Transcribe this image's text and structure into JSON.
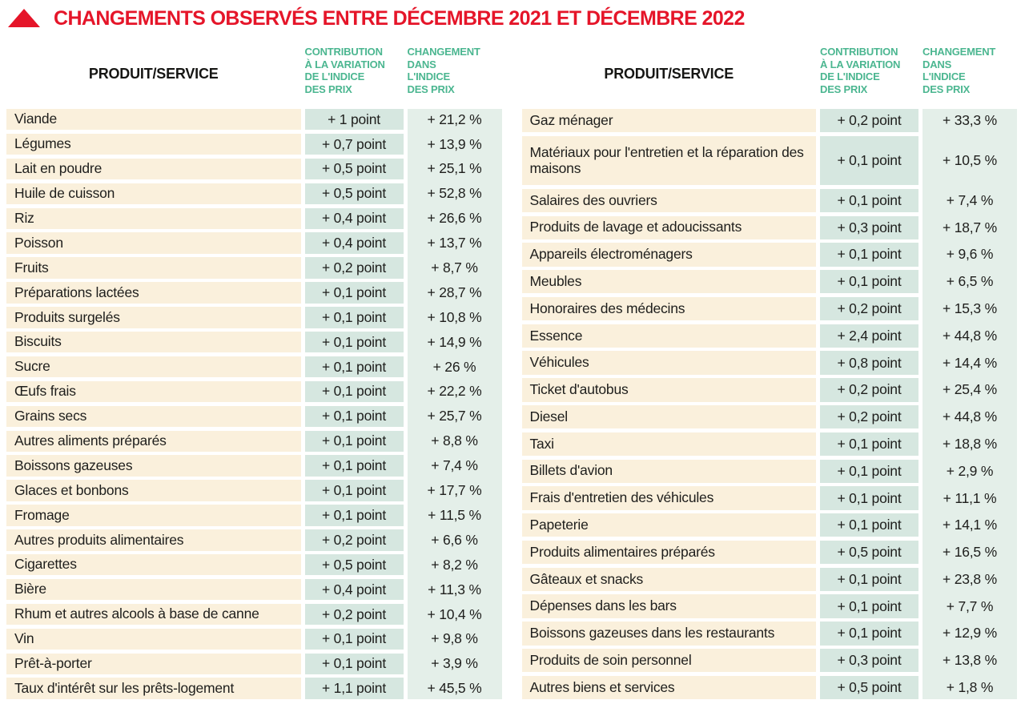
{
  "title": {
    "text": "CHANGEMENTS OBSERVÉS ENTRE DÉCEMBRE 2021 ET DÉCEMBRE 2022",
    "icon": "triangle-up-icon"
  },
  "colors": {
    "title_red": "#e51529",
    "header_green": "#4bb690",
    "product_cell_cream": "#faf0dc",
    "contribution_cell_teal": "#d6e7e0",
    "change_column_teal": "#e4efe9",
    "text": "#1e1e1c"
  },
  "column_headers": {
    "product": "PRODUIT/SERVICE",
    "contribution": "CONTRIBUTION\nÀ LA VARIATION\nDE L'INDICE\nDES PRIX",
    "change": "CHANGEMENT\nDANS\nL'INDICE\nDES PRIX"
  },
  "chart_data": [
    {
      "type": "table",
      "title": "Changements observés entre décembre 2021 et décembre 2022 (tableau gauche)",
      "columns": [
        "PRODUIT/SERVICE",
        "CONTRIBUTION À LA VARIATION DE L'INDICE DES PRIX",
        "CHANGEMENT DANS L'INDICE DES PRIX"
      ],
      "rows": [
        {
          "product": "Viande",
          "contribution": "+ 1 point",
          "change": "+ 21,2 %"
        },
        {
          "product": "Légumes",
          "contribution": "+ 0,7 point",
          "change": "+ 13,9 %"
        },
        {
          "product": "Lait en poudre",
          "contribution": "+ 0,5 point",
          "change": "+ 25,1 %"
        },
        {
          "product": "Huile de cuisson",
          "contribution": "+ 0,5 point",
          "change": "+ 52,8 %"
        },
        {
          "product": "Riz",
          "contribution": "+ 0,4 point",
          "change": "+ 26,6 %"
        },
        {
          "product": "Poisson",
          "contribution": "+ 0,4 point",
          "change": "+ 13,7 %"
        },
        {
          "product": "Fruits",
          "contribution": "+ 0,2 point",
          "change": "+ 8,7 %"
        },
        {
          "product": "Préparations lactées",
          "contribution": "+ 0,1 point",
          "change": "+ 28,7 %"
        },
        {
          "product": "Produits surgelés",
          "contribution": "+ 0,1 point",
          "change": "+ 10,8 %"
        },
        {
          "product": "Biscuits",
          "contribution": "+ 0,1 point",
          "change": "+ 14,9 %"
        },
        {
          "product": "Sucre",
          "contribution": "+ 0,1 point",
          "change": "+ 26 %"
        },
        {
          "product": "Œufs frais",
          "contribution": "+ 0,1 point",
          "change": "+ 22,2 %"
        },
        {
          "product": "Grains secs",
          "contribution": "+ 0,1 point",
          "change": "+ 25,7 %"
        },
        {
          "product": "Autres aliments préparés",
          "contribution": "+ 0,1 point",
          "change": "+ 8,8 %"
        },
        {
          "product": "Boissons gazeuses",
          "contribution": "+ 0,1 point",
          "change": "+ 7,4 %"
        },
        {
          "product": "Glaces et bonbons",
          "contribution": "+ 0,1 point",
          "change": "+ 17,7 %"
        },
        {
          "product": "Fromage",
          "contribution": "+ 0,1 point",
          "change": "+ 11,5 %"
        },
        {
          "product": "Autres produits alimentaires",
          "contribution": "+ 0,2 point",
          "change": "+ 6,6 %"
        },
        {
          "product": "Cigarettes",
          "contribution": "+ 0,5 point",
          "change": "+ 8,2 %"
        },
        {
          "product": "Bière",
          "contribution": "+ 0,4 point",
          "change": "+ 11,3 %"
        },
        {
          "product": "Rhum et autres alcools à base de canne",
          "contribution": "+ 0,2 point",
          "change": "+ 10,4 %"
        },
        {
          "product": "Vin",
          "contribution": "+ 0,1 point",
          "change": "+ 9,8 %"
        },
        {
          "product": "Prêt-à-porter",
          "contribution": "+ 0,1 point",
          "change": "+ 3,9 %"
        },
        {
          "product": "Taux d'intérêt sur les prêts-logement",
          "contribution": "+ 1,1 point",
          "change": "+ 45,5 %"
        }
      ]
    },
    {
      "type": "table",
      "title": "Changements observés entre décembre 2021 et décembre 2022 (tableau droit)",
      "columns": [
        "PRODUIT/SERVICE",
        "CONTRIBUTION À LA VARIATION DE L'INDICE DES PRIX",
        "CHANGEMENT DANS L'INDICE DES PRIX"
      ],
      "rows": [
        {
          "product": "Gaz ménager",
          "contribution": "+ 0,2 point",
          "change": "+ 33,3 %"
        },
        {
          "product": "Matériaux pour l'entretien et la réparation des maisons",
          "contribution": "+ 0,1 point",
          "change": "+ 10,5 %",
          "tall": true
        },
        {
          "product": "Salaires des ouvriers",
          "contribution": "+ 0,1 point",
          "change": "+ 7,4 %"
        },
        {
          "product": "Produits de lavage et adoucissants",
          "contribution": "+ 0,3 point",
          "change": "+ 18,7 %"
        },
        {
          "product": "Appareils électroménagers",
          "contribution": "+ 0,1 point",
          "change": "+ 9,6 %"
        },
        {
          "product": "Meubles",
          "contribution": "+ 0,1 point",
          "change": "+ 6,5 %"
        },
        {
          "product": "Honoraires des médecins",
          "contribution": "+ 0,2 point",
          "change": "+ 15,3 %"
        },
        {
          "product": "Essence",
          "contribution": "+ 2,4 point",
          "change": "+ 44,8 %"
        },
        {
          "product": "Véhicules",
          "contribution": "+ 0,8 point",
          "change": "+ 14,4 %"
        },
        {
          "product": "Ticket d'autobus",
          "contribution": "+ 0,2 point",
          "change": "+ 25,4 %"
        },
        {
          "product": "Diesel",
          "contribution": "+ 0,2 point",
          "change": "+ 44,8 %"
        },
        {
          "product": "Taxi",
          "contribution": "+ 0,1 point",
          "change": "+ 18,8 %"
        },
        {
          "product": "Billets d'avion",
          "contribution": "+ 0,1 point",
          "change": "+ 2,9 %"
        },
        {
          "product": "Frais d'entretien des véhicules",
          "contribution": "+ 0,1 point",
          "change": "+ 11,1 %"
        },
        {
          "product": "Papeterie",
          "contribution": "+ 0,1 point",
          "change": "+ 14,1 %"
        },
        {
          "product": "Produits alimentaires préparés",
          "contribution": "+ 0,5 point",
          "change": "+ 16,5 %"
        },
        {
          "product": "Gâteaux et snacks",
          "contribution": "+ 0,1 point",
          "change": "+ 23,8 %"
        },
        {
          "product": "Dépenses dans les bars",
          "contribution": "+ 0,1 point",
          "change": "+ 7,7 %"
        },
        {
          "product": "Boissons gazeuses dans les restaurants",
          "contribution": "+ 0,1 point",
          "change": "+ 12,9 %"
        },
        {
          "product": "Produits de soin personnel",
          "contribution": "+ 0,3 point",
          "change": "+ 13,8 %"
        },
        {
          "product": "Autres biens et services",
          "contribution": "+ 0,5 point",
          "change": "+ 1,8 %"
        }
      ]
    }
  ]
}
